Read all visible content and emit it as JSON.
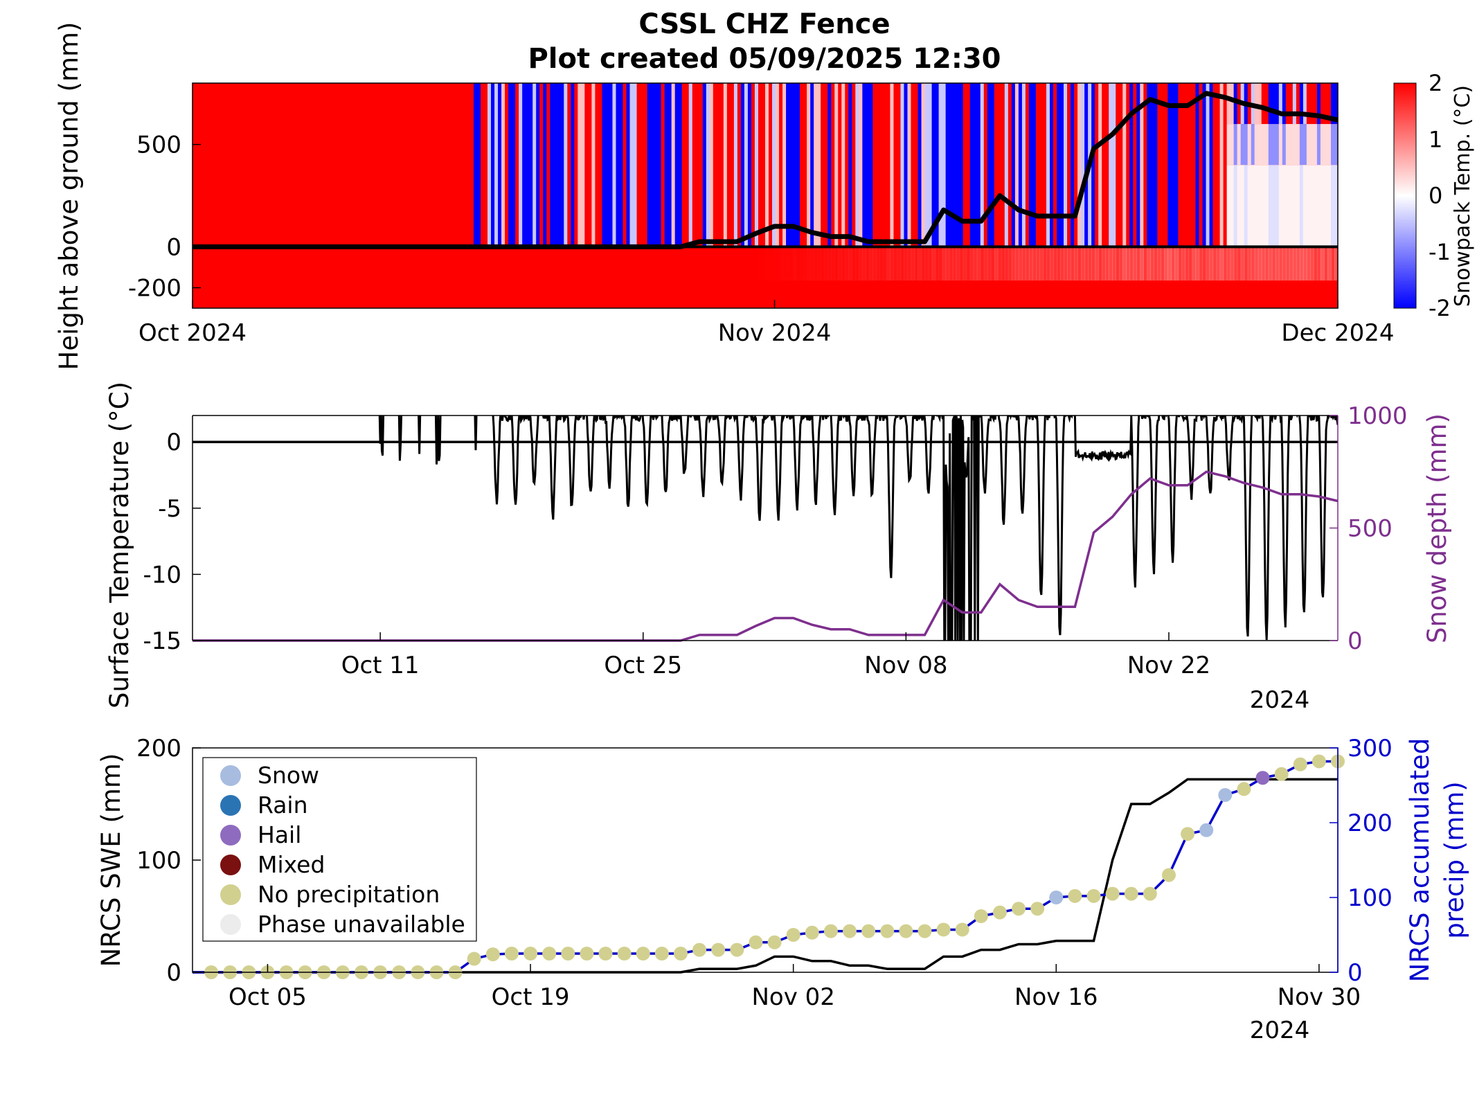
{
  "title": "CSSL CHZ Fence",
  "subtitle": "Plot created 05/09/2025 12:30",
  "chart_data": [
    {
      "type": "heatmap",
      "ylabel": "Height above ground (mm)",
      "x_ticks": [
        "Oct 2024",
        "Nov 2024",
        "Dec 2024"
      ],
      "x_range": [
        "2024-10-01",
        "2024-12-01"
      ],
      "y_ticks": [
        "-200",
        "0",
        "500"
      ],
      "ylim": [
        -300,
        800
      ],
      "colorbar": {
        "label": "Snowpack Temp. (°C)",
        "ticks": [
          "-2",
          "-1",
          "0",
          "1",
          "2"
        ],
        "range": [
          -2,
          2
        ]
      },
      "colors": {
        "warm": "#ff0000",
        "neutral": "#ffffff",
        "cold": "#0000ff"
      },
      "cold_start_date": "2024-10-16",
      "snow_depth_line": {
        "color": "#000000"
      }
    },
    {
      "type": "line",
      "ylabel": "Surface Temperature (°C)",
      "ylabel_right": "Snow depth (mm)",
      "y_ticks": [
        "-15",
        "-10",
        "-5",
        "0"
      ],
      "ylim": [
        -15,
        2
      ],
      "y2_ticks": [
        "0",
        "500",
        "1000"
      ],
      "y2lim": [
        0,
        1000
      ],
      "x_ticks": [
        "Oct 11",
        "Oct 25",
        "Nov 08",
        "Nov 22"
      ],
      "year_label": "2024",
      "series": [
        {
          "name": "Surface Temperature",
          "color": "#000000",
          "axis": "left"
        },
        {
          "name": "Snow depth",
          "color": "#7e2f8e",
          "axis": "right",
          "x": [
            "2024-10-01",
            "2024-10-27",
            "2024-10-28",
            "2024-10-30",
            "2024-10-31",
            "2024-11-01",
            "2024-11-02",
            "2024-11-03",
            "2024-11-04",
            "2024-11-05",
            "2024-11-06",
            "2024-11-07",
            "2024-11-08",
            "2024-11-09",
            "2024-11-10",
            "2024-11-11",
            "2024-11-12",
            "2024-11-13",
            "2024-11-14",
            "2024-11-15",
            "2024-11-16",
            "2024-11-17",
            "2024-11-18",
            "2024-11-19",
            "2024-11-20",
            "2024-11-21",
            "2024-11-22",
            "2024-11-23",
            "2024-11-24",
            "2024-11-25",
            "2024-11-26",
            "2024-11-27",
            "2024-11-28",
            "2024-11-29",
            "2024-11-30",
            "2024-12-01"
          ],
          "y": [
            0,
            0,
            25,
            25,
            65,
            100,
            100,
            70,
            50,
            50,
            25,
            25,
            25,
            25,
            180,
            125,
            125,
            250,
            180,
            150,
            150,
            150,
            480,
            550,
            650,
            720,
            690,
            690,
            750,
            730,
            700,
            680,
            650,
            650,
            640,
            620
          ]
        }
      ]
    },
    {
      "type": "scatter",
      "ylabel": "NRCS SWE (mm)",
      "ylabel_right": "NRCS accumulated precip (mm)",
      "y_ticks": [
        "0",
        "100",
        "200"
      ],
      "ylim": [
        0,
        200
      ],
      "y2_ticks": [
        "0",
        "100",
        "200",
        "300"
      ],
      "y2lim": [
        0,
        300
      ],
      "x_ticks": [
        "Oct 05",
        "Oct 19",
        "Nov 02",
        "Nov 16",
        "Nov 30"
      ],
      "year_label": "2024",
      "legend": {
        "placement": "upper-left",
        "entries": [
          {
            "label": "Snow",
            "color": "#a7bcdf"
          },
          {
            "label": "Rain",
            "color": "#2b74b3"
          },
          {
            "label": "Hail",
            "color": "#8f6bbf"
          },
          {
            "label": "Mixed",
            "color": "#7a1010"
          },
          {
            "label": "No precipitation",
            "color": "#d2d08f"
          },
          {
            "label": "Phase unavailable",
            "color": "#ececec"
          }
        ]
      },
      "swe": {
        "color": "#000000",
        "x": [
          "2024-10-01",
          "2024-10-27",
          "2024-10-28",
          "2024-10-30",
          "2024-10-31",
          "2024-11-01",
          "2024-11-02",
          "2024-11-03",
          "2024-11-04",
          "2024-11-05",
          "2024-11-06",
          "2024-11-07",
          "2024-11-08",
          "2024-11-09",
          "2024-11-10",
          "2024-11-11",
          "2024-11-12",
          "2024-11-13",
          "2024-11-14",
          "2024-11-15",
          "2024-11-16",
          "2024-11-17",
          "2024-11-18",
          "2024-11-19",
          "2024-11-20",
          "2024-11-21",
          "2024-11-22",
          "2024-11-23",
          "2024-11-24",
          "2024-11-25",
          "2024-11-26",
          "2024-12-01"
        ],
        "y": [
          0,
          0,
          3,
          3,
          6,
          14,
          14,
          10,
          10,
          6,
          6,
          3,
          3,
          3,
          14,
          14,
          20,
          20,
          25,
          25,
          28,
          28,
          28,
          100,
          150,
          150,
          160,
          172,
          172,
          172,
          172,
          172
        ]
      },
      "accumulated_precip": {
        "color": "#0000cc",
        "x": [
          "2024-10-02",
          "2024-10-03",
          "2024-10-04",
          "2024-10-05",
          "2024-10-06",
          "2024-10-07",
          "2024-10-08",
          "2024-10-09",
          "2024-10-10",
          "2024-10-11",
          "2024-10-12",
          "2024-10-13",
          "2024-10-14",
          "2024-10-15",
          "2024-10-16",
          "2024-10-17",
          "2024-10-18",
          "2024-10-19",
          "2024-10-20",
          "2024-10-21",
          "2024-10-22",
          "2024-10-23",
          "2024-10-24",
          "2024-10-25",
          "2024-10-26",
          "2024-10-27",
          "2024-10-28",
          "2024-10-29",
          "2024-10-30",
          "2024-10-31",
          "2024-11-01",
          "2024-11-02",
          "2024-11-03",
          "2024-11-04",
          "2024-11-05",
          "2024-11-06",
          "2024-11-07",
          "2024-11-08",
          "2024-11-09",
          "2024-11-10",
          "2024-11-11",
          "2024-11-12",
          "2024-11-13",
          "2024-11-14",
          "2024-11-15",
          "2024-11-16",
          "2024-11-17",
          "2024-11-18",
          "2024-11-19",
          "2024-11-20",
          "2024-11-21",
          "2024-11-22",
          "2024-11-23",
          "2024-11-24",
          "2024-11-25",
          "2024-11-26",
          "2024-11-27",
          "2024-11-28",
          "2024-11-29",
          "2024-11-30",
          "2024-12-01"
        ],
        "y": [
          0,
          0,
          0,
          0,
          0,
          0,
          0,
          0,
          0,
          0,
          0,
          0,
          0,
          0,
          18,
          24,
          25,
          25,
          25,
          25,
          25,
          25,
          25,
          25,
          25,
          25,
          30,
          30,
          30,
          40,
          40,
          50,
          53,
          55,
          55,
          55,
          55,
          55,
          55,
          57,
          57,
          75,
          80,
          85,
          85,
          100,
          102,
          102,
          105,
          105,
          105,
          130,
          185,
          190,
          237,
          245,
          260,
          265,
          278,
          282,
          282
        ],
        "phase": [
          "No precipitation",
          "No precipitation",
          "No precipitation",
          "No precipitation",
          "No precipitation",
          "No precipitation",
          "No precipitation",
          "No precipitation",
          "No precipitation",
          "No precipitation",
          "No precipitation",
          "No precipitation",
          "No precipitation",
          "No precipitation",
          "No precipitation",
          "No precipitation",
          "No precipitation",
          "No precipitation",
          "No precipitation",
          "No precipitation",
          "No precipitation",
          "No precipitation",
          "No precipitation",
          "No precipitation",
          "No precipitation",
          "No precipitation",
          "No precipitation",
          "No precipitation",
          "No precipitation",
          "No precipitation",
          "No precipitation",
          "No precipitation",
          "No precipitation",
          "No precipitation",
          "No precipitation",
          "No precipitation",
          "No precipitation",
          "No precipitation",
          "No precipitation",
          "No precipitation",
          "No precipitation",
          "No precipitation",
          "No precipitation",
          "No precipitation",
          "No precipitation",
          "Snow",
          "No precipitation",
          "No precipitation",
          "No precipitation",
          "No precipitation",
          "No precipitation",
          "No precipitation",
          "No precipitation",
          "Snow",
          "Snow",
          "No precipitation",
          "Hail",
          "No precipitation",
          "No precipitation",
          "No precipitation",
          "No precipitation"
        ]
      }
    }
  ]
}
